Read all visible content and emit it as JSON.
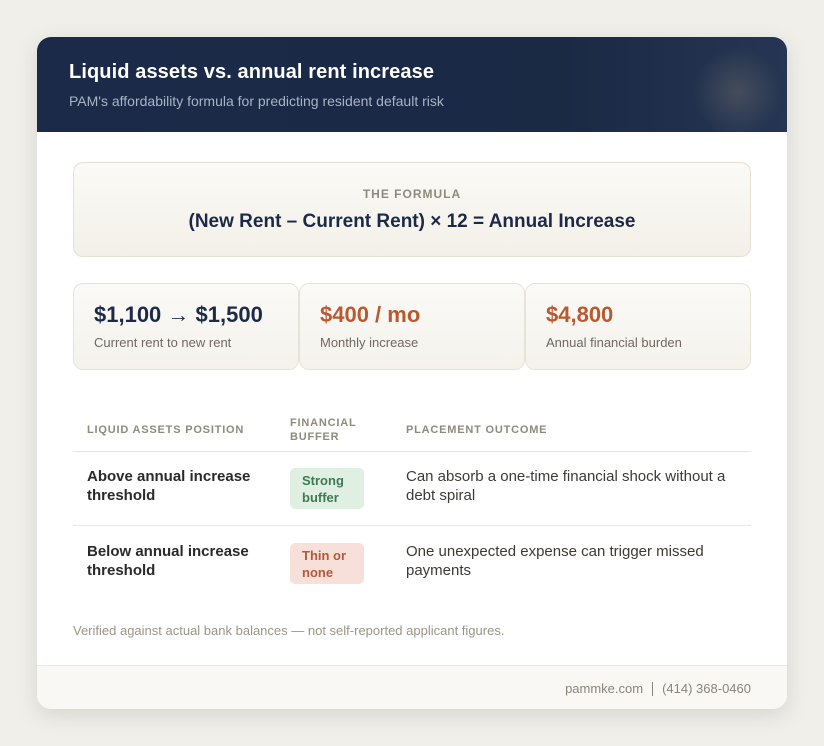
{
  "header": {
    "title": "Liquid assets vs. annual rent increase",
    "subtitle": "PAM's affordability formula for predicting resident default risk"
  },
  "formula": {
    "label": "THE FORMULA",
    "expression": "(New Rent – Current Rent) × 12 = Annual Increase"
  },
  "stats": [
    {
      "value": "$1,100 → $1,500",
      "caption": "Current rent to new rent",
      "color": "#1c2a48"
    },
    {
      "value": "$400 / mo",
      "caption": "Monthly increase",
      "color": "#b9592f"
    },
    {
      "value": "$4,800",
      "caption": "Annual financial burden",
      "color": "#b9592f"
    }
  ],
  "table": {
    "headers": [
      "LIQUID ASSETS POSITION",
      "FINANCIAL BUFFER",
      "PLACEMENT OUTCOME"
    ],
    "rows": [
      {
        "position": "Above annual increase threshold",
        "buffer": "Strong buffer",
        "buffer_color": "#3f7a52",
        "outcome": "Can absorb a one-time financial shock without a debt spiral"
      },
      {
        "position": "Below annual increase threshold",
        "buffer": "Thin or none",
        "buffer_color": "#b4583a",
        "outcome": "One unexpected expense can trigger missed payments"
      }
    ]
  },
  "note": "Verified against actual bank balances — not self-reported applicant figures.",
  "footer": {
    "website": "pammke.com",
    "phone": "(414) 368-0460"
  }
}
